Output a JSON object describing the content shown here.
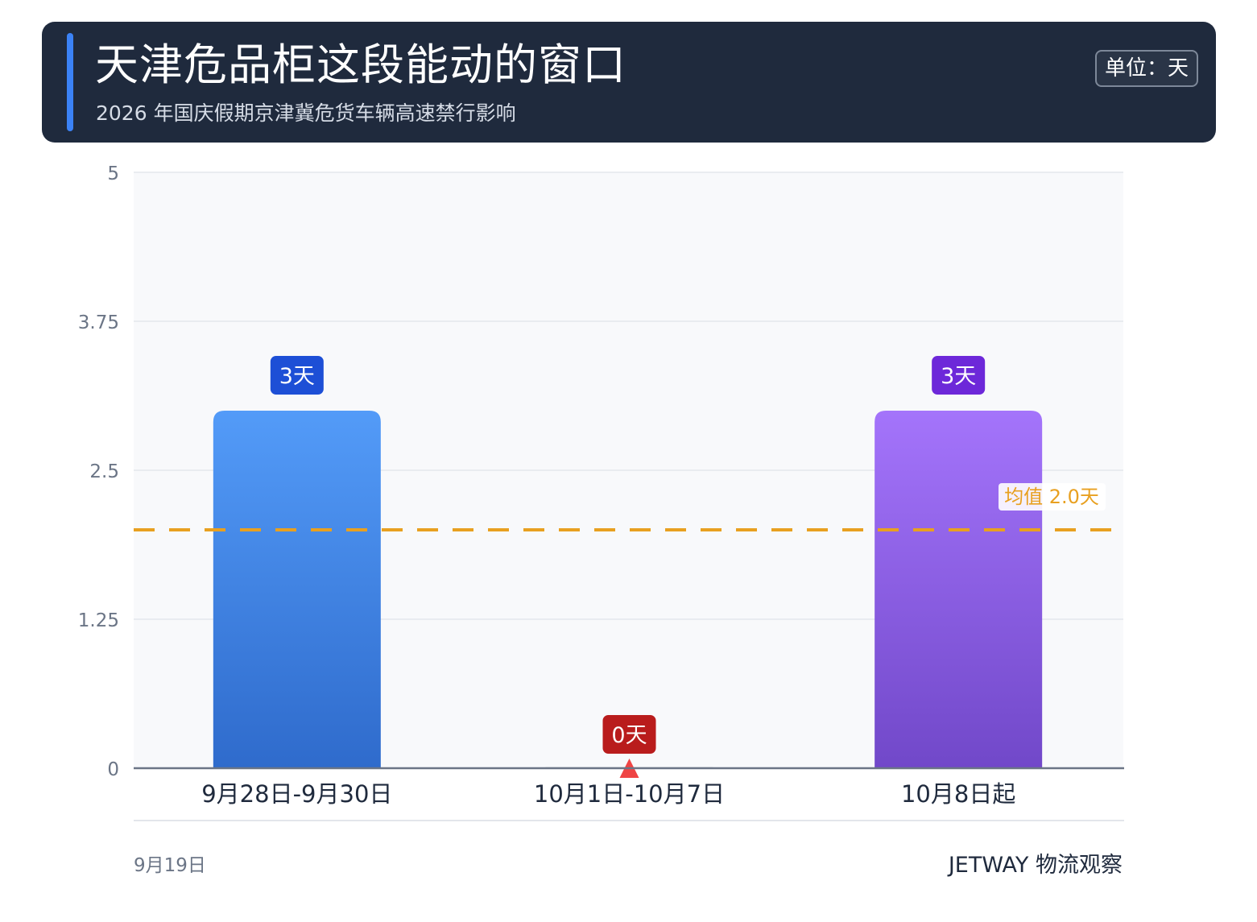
{
  "header": {
    "title": "天津危品柜这段能动的窗口",
    "subtitle": "2026 年国庆假期京津冀危货车辆高速禁行影响",
    "unit_label": "单位：天"
  },
  "footer": {
    "date": "9月19日",
    "brand": "JETWAY 物流观察"
  },
  "colors": {
    "bar1_top": "#539bf8",
    "bar1_bottom": "#2f6bcc",
    "bar3_top": "#a474fb",
    "bar3_bottom": "#7148c9",
    "label1": "#1d4fd6",
    "label2": "#b91c1c",
    "label3": "#6d28d9",
    "mean_line": "#e8a020",
    "marker": "#ef4444"
  },
  "chart_data": {
    "type": "bar",
    "categories": [
      "9月28日-9月30日",
      "10月1日-10月7日",
      "10月8日起"
    ],
    "values": [
      3,
      0,
      3
    ],
    "value_labels": [
      "3天",
      "0天",
      "3天"
    ],
    "y_ticks": [
      "0",
      "1.25",
      "2.5",
      "3.75",
      "5"
    ],
    "ylim": [
      0,
      5
    ],
    "grid": true,
    "mean": 2.0,
    "mean_label": "均值 2.0天"
  }
}
